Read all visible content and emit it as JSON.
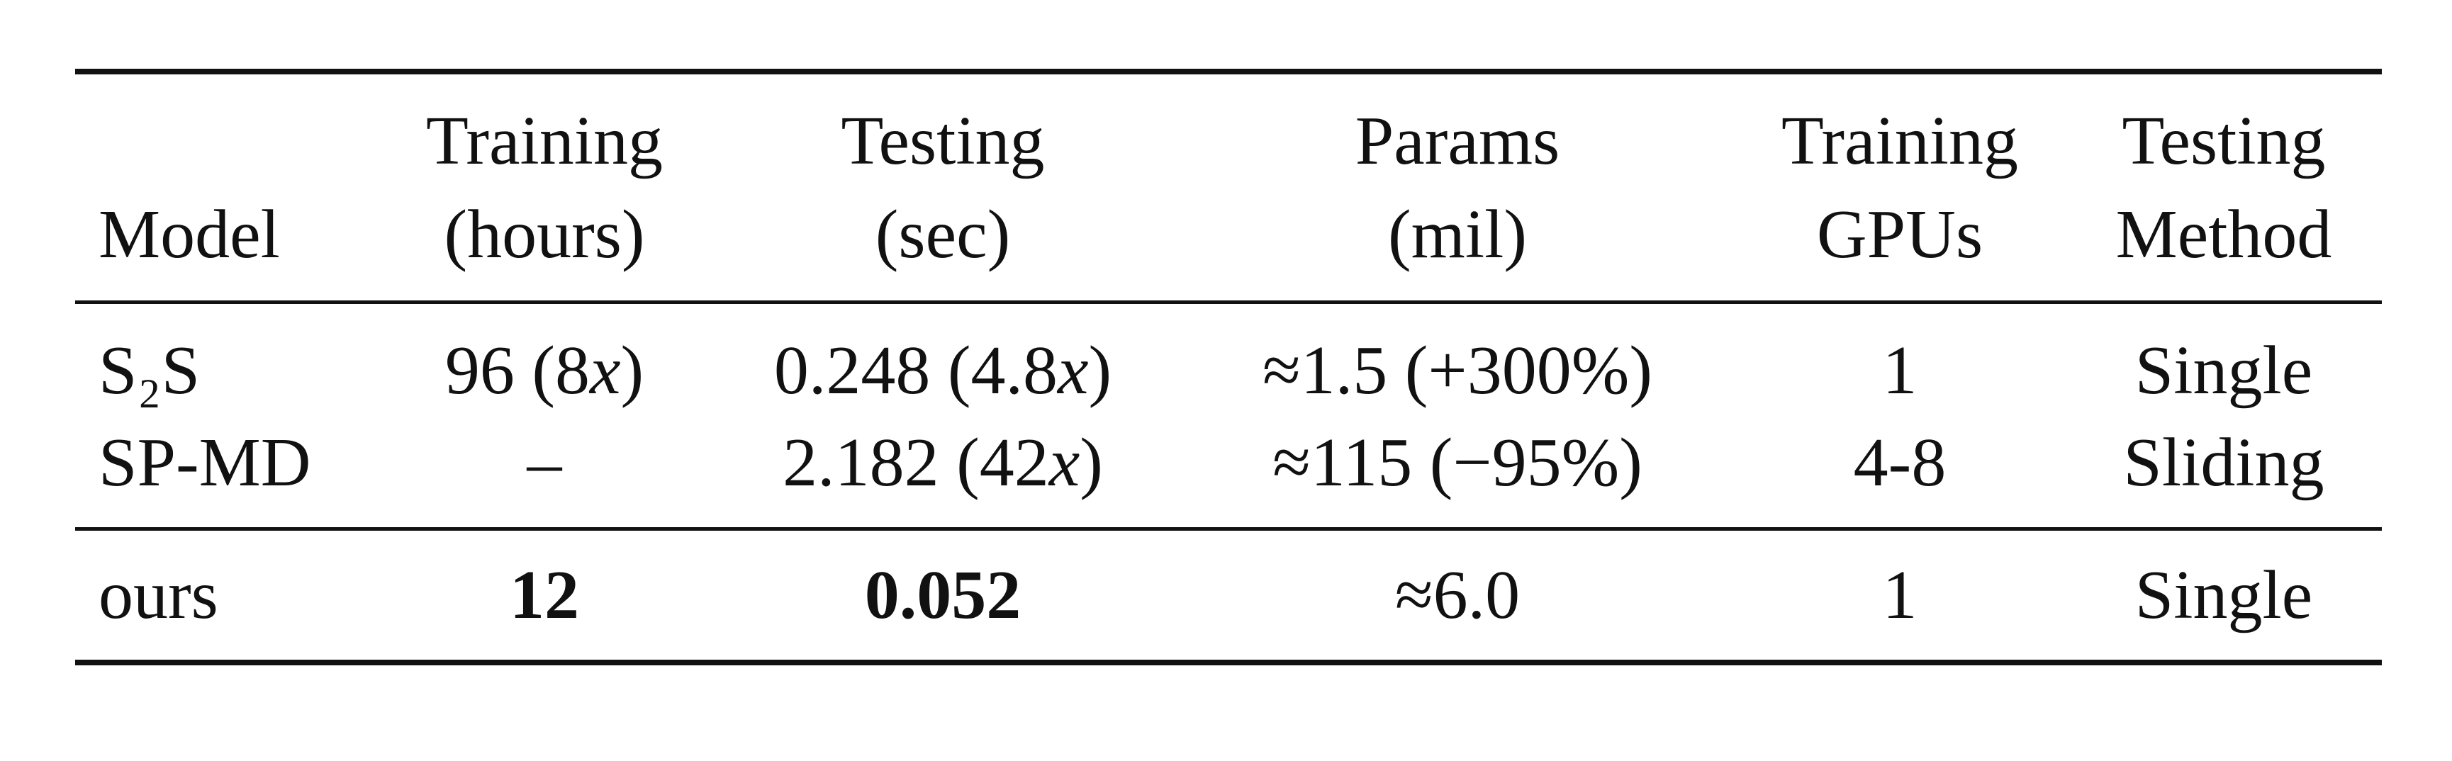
{
  "table": {
    "header": [
      [
        "Model"
      ],
      [
        "Training",
        "(hours)"
      ],
      [
        "Testing",
        "(sec)"
      ],
      [
        "Params",
        "(mil)"
      ],
      [
        "Training",
        "GPUs"
      ],
      [
        "Testing",
        "Method"
      ]
    ],
    "rows": [
      [
        "S₂S",
        "96 (8x)",
        "0.248 (4.8x)",
        "≈1.5 (+300%)",
        "1",
        "Single"
      ],
      [
        "SP-MD",
        "–",
        "2.182 (42x)",
        "≈115 (−95%)",
        "4-8",
        "Sliding"
      ],
      [
        "ours",
        "12",
        "0.052",
        "≈6.0",
        "1",
        "Single"
      ]
    ]
  }
}
